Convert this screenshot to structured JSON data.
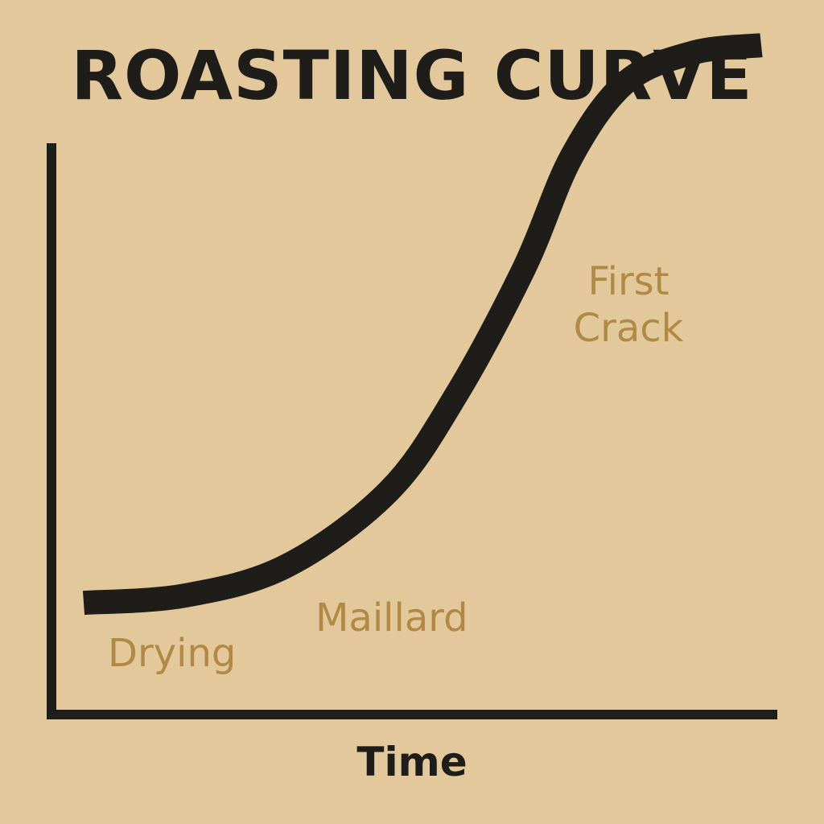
{
  "title": "ROASTING CURVE",
  "colors": {
    "background": "#e3c89b",
    "ink": "#1f1d19",
    "annotation": "#b08a45"
  },
  "chart_data": {
    "type": "line",
    "title": "ROASTING CURVE",
    "xlabel": "Time",
    "ylabel": "",
    "grid": false,
    "legend": "none",
    "axis_ticks": false,
    "x": [
      0,
      0.15,
      0.3,
      0.45,
      0.55,
      0.65,
      0.72,
      0.8,
      0.9,
      1.0
    ],
    "series": [
      {
        "values": [
          0.2,
          0.21,
          0.25,
          0.35,
          0.48,
          0.65,
          0.8,
          0.9,
          0.94,
          0.95
        ]
      }
    ],
    "xlim": [
      0,
      1
    ],
    "ylim": [
      0,
      1
    ],
    "annotations": [
      {
        "text": "Drying"
      },
      {
        "text": "Maillard"
      },
      {
        "text": "First\nCrack"
      }
    ]
  }
}
